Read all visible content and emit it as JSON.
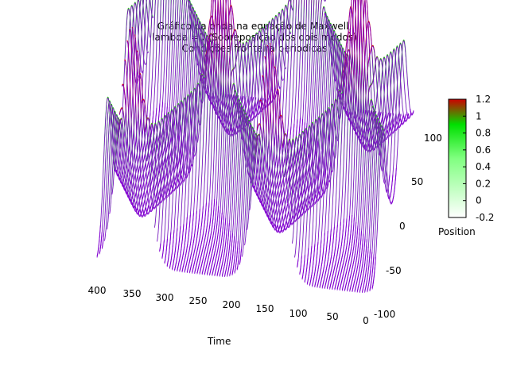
{
  "title_lines": [
    "Gráfico da onda na equação de Maxwell,",
    "lambda =0 (Sobreposição dos dois modos)",
    "Condições fronteira periodicas"
  ],
  "chart_data": {
    "type": "surface",
    "xlabel": "Time",
    "ylabel": "Position",
    "x_ticks": [
      "400",
      "350",
      "300",
      "250",
      "200",
      "150",
      "100",
      "50",
      "0"
    ],
    "y_ticks": [
      "100",
      "50",
      "0",
      "-50",
      "-100"
    ],
    "zlim": [
      -0.2,
      1.2
    ],
    "colorbar": {
      "ticks": [
        "1.2",
        "1",
        "0.8",
        "0.6",
        "0.4",
        "0.2",
        "0",
        "-0.2"
      ],
      "stops": [
        {
          "value": -0.2,
          "color": "#ffffff"
        },
        {
          "value": 0.5,
          "color": "#80ff80"
        },
        {
          "value": 0.9,
          "color": "#00e000"
        },
        {
          "value": 1.2,
          "color": "#cc0000"
        }
      ]
    },
    "wave": {
      "pulses": 2,
      "peak_value": 1.0,
      "x_range": [
        0,
        400
      ],
      "y_range": [
        -100,
        100
      ],
      "period": 200,
      "initial_centers": [
        -50,
        50
      ]
    },
    "mesh_color": "#8000d0"
  }
}
